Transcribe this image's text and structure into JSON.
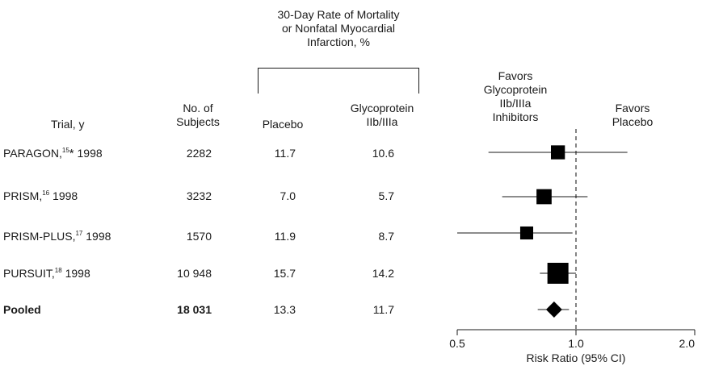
{
  "header": {
    "rate_title_lines": [
      "30-Day Rate of Mortality",
      "or Nonfatal Myocardial",
      "Infarction, %"
    ],
    "trial_col": "Trial, y",
    "subjects_col_lines": [
      "No. of",
      "Subjects"
    ],
    "placebo_col": "Placebo",
    "gp_col_lines": [
      "Glycoprotein",
      "IIb/IIIa"
    ],
    "favors_gp_lines": [
      "Favors",
      "Glycoprotein",
      "IIb/IIIa",
      "Inhibitors"
    ],
    "favors_placebo_lines": [
      "Favors",
      "Placebo"
    ]
  },
  "rows": [
    {
      "trial": "PARAGON,",
      "ref": "15",
      "star": "*",
      "year": " 1998",
      "subjects": "2282",
      "placebo": "11.7",
      "gp": "10.6"
    },
    {
      "trial": "PRISM,",
      "ref": "16",
      "star": "",
      "year": " 1998",
      "subjects": "3232",
      "placebo": "7.0",
      "gp": "5.7"
    },
    {
      "trial": "PRISM-PLUS,",
      "ref": "17",
      "star": "",
      "year": " 1998",
      "subjects": "1570",
      "placebo": "11.9",
      "gp": "8.7"
    },
    {
      "trial": "PURSUIT,",
      "ref": "18",
      "star": "",
      "year": " 1998",
      "subjects": "10 948",
      "placebo": "15.7",
      "gp": "14.2"
    },
    {
      "trial": "Pooled",
      "ref": "",
      "star": "",
      "year": "",
      "subjects": "18 031",
      "placebo": "13.3",
      "gp": "11.7"
    }
  ],
  "chart_data": {
    "type": "forest",
    "xlabel": "Risk Ratio (95% CI)",
    "xscale": "log",
    "xlim": [
      0.5,
      2.0
    ],
    "xticks": [
      0.5,
      1.0,
      2.0
    ],
    "xtick_labels": [
      "0.5",
      "1.0",
      "2.0"
    ],
    "reference_line": 1.0,
    "points": [
      {
        "name": "PARAGON",
        "rr": 0.9,
        "lo": 0.6,
        "hi": 1.35,
        "weight": 2282,
        "marker": "square"
      },
      {
        "name": "PRISM",
        "rr": 0.83,
        "lo": 0.65,
        "hi": 1.07,
        "weight": 3232,
        "marker": "square"
      },
      {
        "name": "PRISM-PLUS",
        "rr": 0.75,
        "lo": 0.5,
        "hi": 0.98,
        "weight": 1570,
        "marker": "square"
      },
      {
        "name": "PURSUIT",
        "rr": 0.9,
        "lo": 0.81,
        "hi": 1.0,
        "weight": 10948,
        "marker": "square"
      },
      {
        "name": "Pooled",
        "rr": 0.88,
        "lo": 0.8,
        "hi": 0.96,
        "weight": 18031,
        "marker": "diamond"
      }
    ]
  }
}
